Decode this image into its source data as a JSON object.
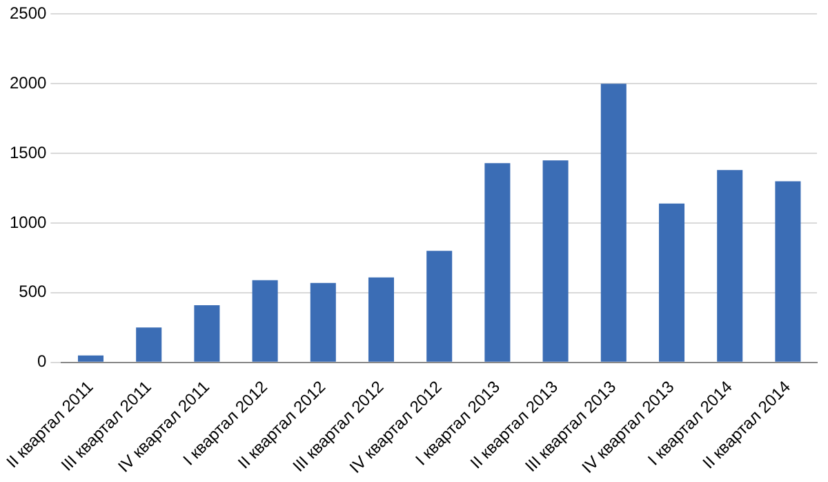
{
  "chart_data": {
    "type": "bar",
    "categories": [
      "II квартал 2011",
      "III квартал 2011",
      "IV квартал 2011",
      "I квартал 2012",
      "II квартал 2012",
      "III квартал 2012",
      "IV квартал 2012",
      "I квартал 2013",
      "II квартал 2013",
      "III квартал 2013",
      "IV квартал 2013",
      "I квартал 2014",
      "II квартал 2014"
    ],
    "values": [
      50,
      250,
      410,
      590,
      570,
      610,
      800,
      1430,
      1450,
      2000,
      1140,
      1380,
      1300
    ],
    "color": "#3b6db5",
    "ylim": [
      0,
      2500
    ],
    "yticks": [
      0,
      500,
      1000,
      1500,
      2000,
      2500
    ],
    "grid": "y",
    "legend": false
  }
}
